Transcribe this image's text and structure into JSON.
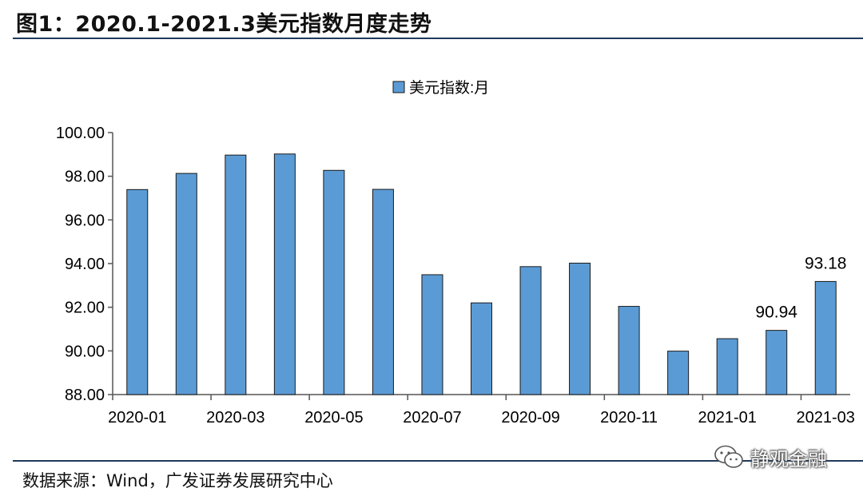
{
  "title": "图1：2020.1-2021.3美元指数月度走势",
  "source": "数据来源：Wind，广发证券发展研究中心",
  "watermark": "静观金融",
  "watermark_icon": "wechat-icon",
  "colors": {
    "bar_fill": "#5b9bd5",
    "bar_stroke": "#1a1a1a",
    "rule": "#1f3a5c"
  },
  "chart_data": {
    "type": "bar",
    "legend": {
      "label": "美元指数:月",
      "placement": "top-center"
    },
    "categories": [
      "2020-01",
      "2020-02",
      "2020-03",
      "2020-04",
      "2020-05",
      "2020-06",
      "2020-07",
      "2020-08",
      "2020-09",
      "2020-10",
      "2020-11",
      "2020-12",
      "2021-01",
      "2021-02",
      "2021-03"
    ],
    "x_tick_labels": [
      "2020-01",
      "2020-03",
      "2020-05",
      "2020-07",
      "2020-09",
      "2020-11",
      "2021-01",
      "2021-03"
    ],
    "series": [
      {
        "name": "美元指数:月",
        "values": [
          97.39,
          98.13,
          98.97,
          99.02,
          98.27,
          97.4,
          93.49,
          92.2,
          93.86,
          94.02,
          92.04,
          89.99,
          90.56,
          90.94,
          93.18
        ]
      }
    ],
    "data_labels": [
      {
        "category": "2021-02",
        "text": "90.94"
      },
      {
        "category": "2021-03",
        "text": "93.18"
      }
    ],
    "ylim": [
      88,
      100
    ],
    "y_ticks": [
      "88.00",
      "90.00",
      "92.00",
      "94.00",
      "96.00",
      "98.00",
      "100.00"
    ],
    "grid": false
  }
}
